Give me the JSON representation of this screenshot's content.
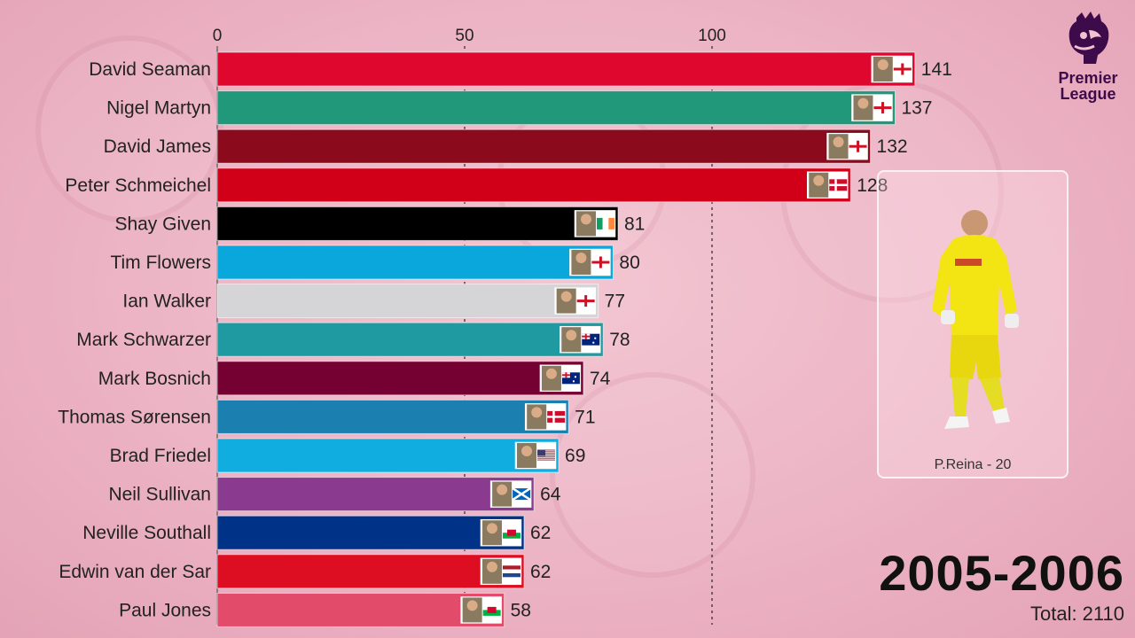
{
  "logo": {
    "line1": "Premier",
    "line2": "League"
  },
  "period": "2005-2006",
  "total_label": "Total: 2110",
  "featured": {
    "caption": "P.Reina - 20"
  },
  "chart_data": {
    "type": "bar",
    "orientation": "horizontal",
    "title": "",
    "xlabel": "",
    "ylabel": "",
    "xlim": [
      0,
      141
    ],
    "xticks": [
      0,
      50,
      100
    ],
    "grid": "vertical dotted at 100",
    "categories": [
      "David Seaman",
      "Nigel Martyn",
      "David James",
      "Peter Schmeichel",
      "Shay Given",
      "Tim Flowers",
      "Ian Walker",
      "Mark Schwarzer",
      "Mark Bosnich",
      "Thomas Sørensen",
      "Brad Friedel",
      "Neil Sullivan",
      "Neville Southall",
      "Edwin van der Sar",
      "Paul Jones"
    ],
    "values": [
      141,
      137,
      132,
      128,
      81,
      80,
      77,
      78,
      74,
      71,
      69,
      64,
      62,
      62,
      58
    ],
    "colors": [
      "#e0072f",
      "#22987b",
      "#8b0b1c",
      "#d10018",
      "#000000",
      "#0aa7dc",
      "#d5d5d8",
      "#1e9aa0",
      "#750032",
      "#1b7fb0",
      "#10aee0",
      "#8a3b8f",
      "#003388",
      "#dd0e22",
      "#e24b6a"
    ],
    "flags": [
      "england-flag",
      "england-flag",
      "england-flag",
      "denmark-flag",
      "ireland-flag",
      "england-flag",
      "england-flag",
      "australia-flag",
      "australia-flag",
      "denmark-flag",
      "usa-flag",
      "scotland-flag",
      "wales-flag",
      "netherlands-flag",
      "wales-flag"
    ]
  }
}
